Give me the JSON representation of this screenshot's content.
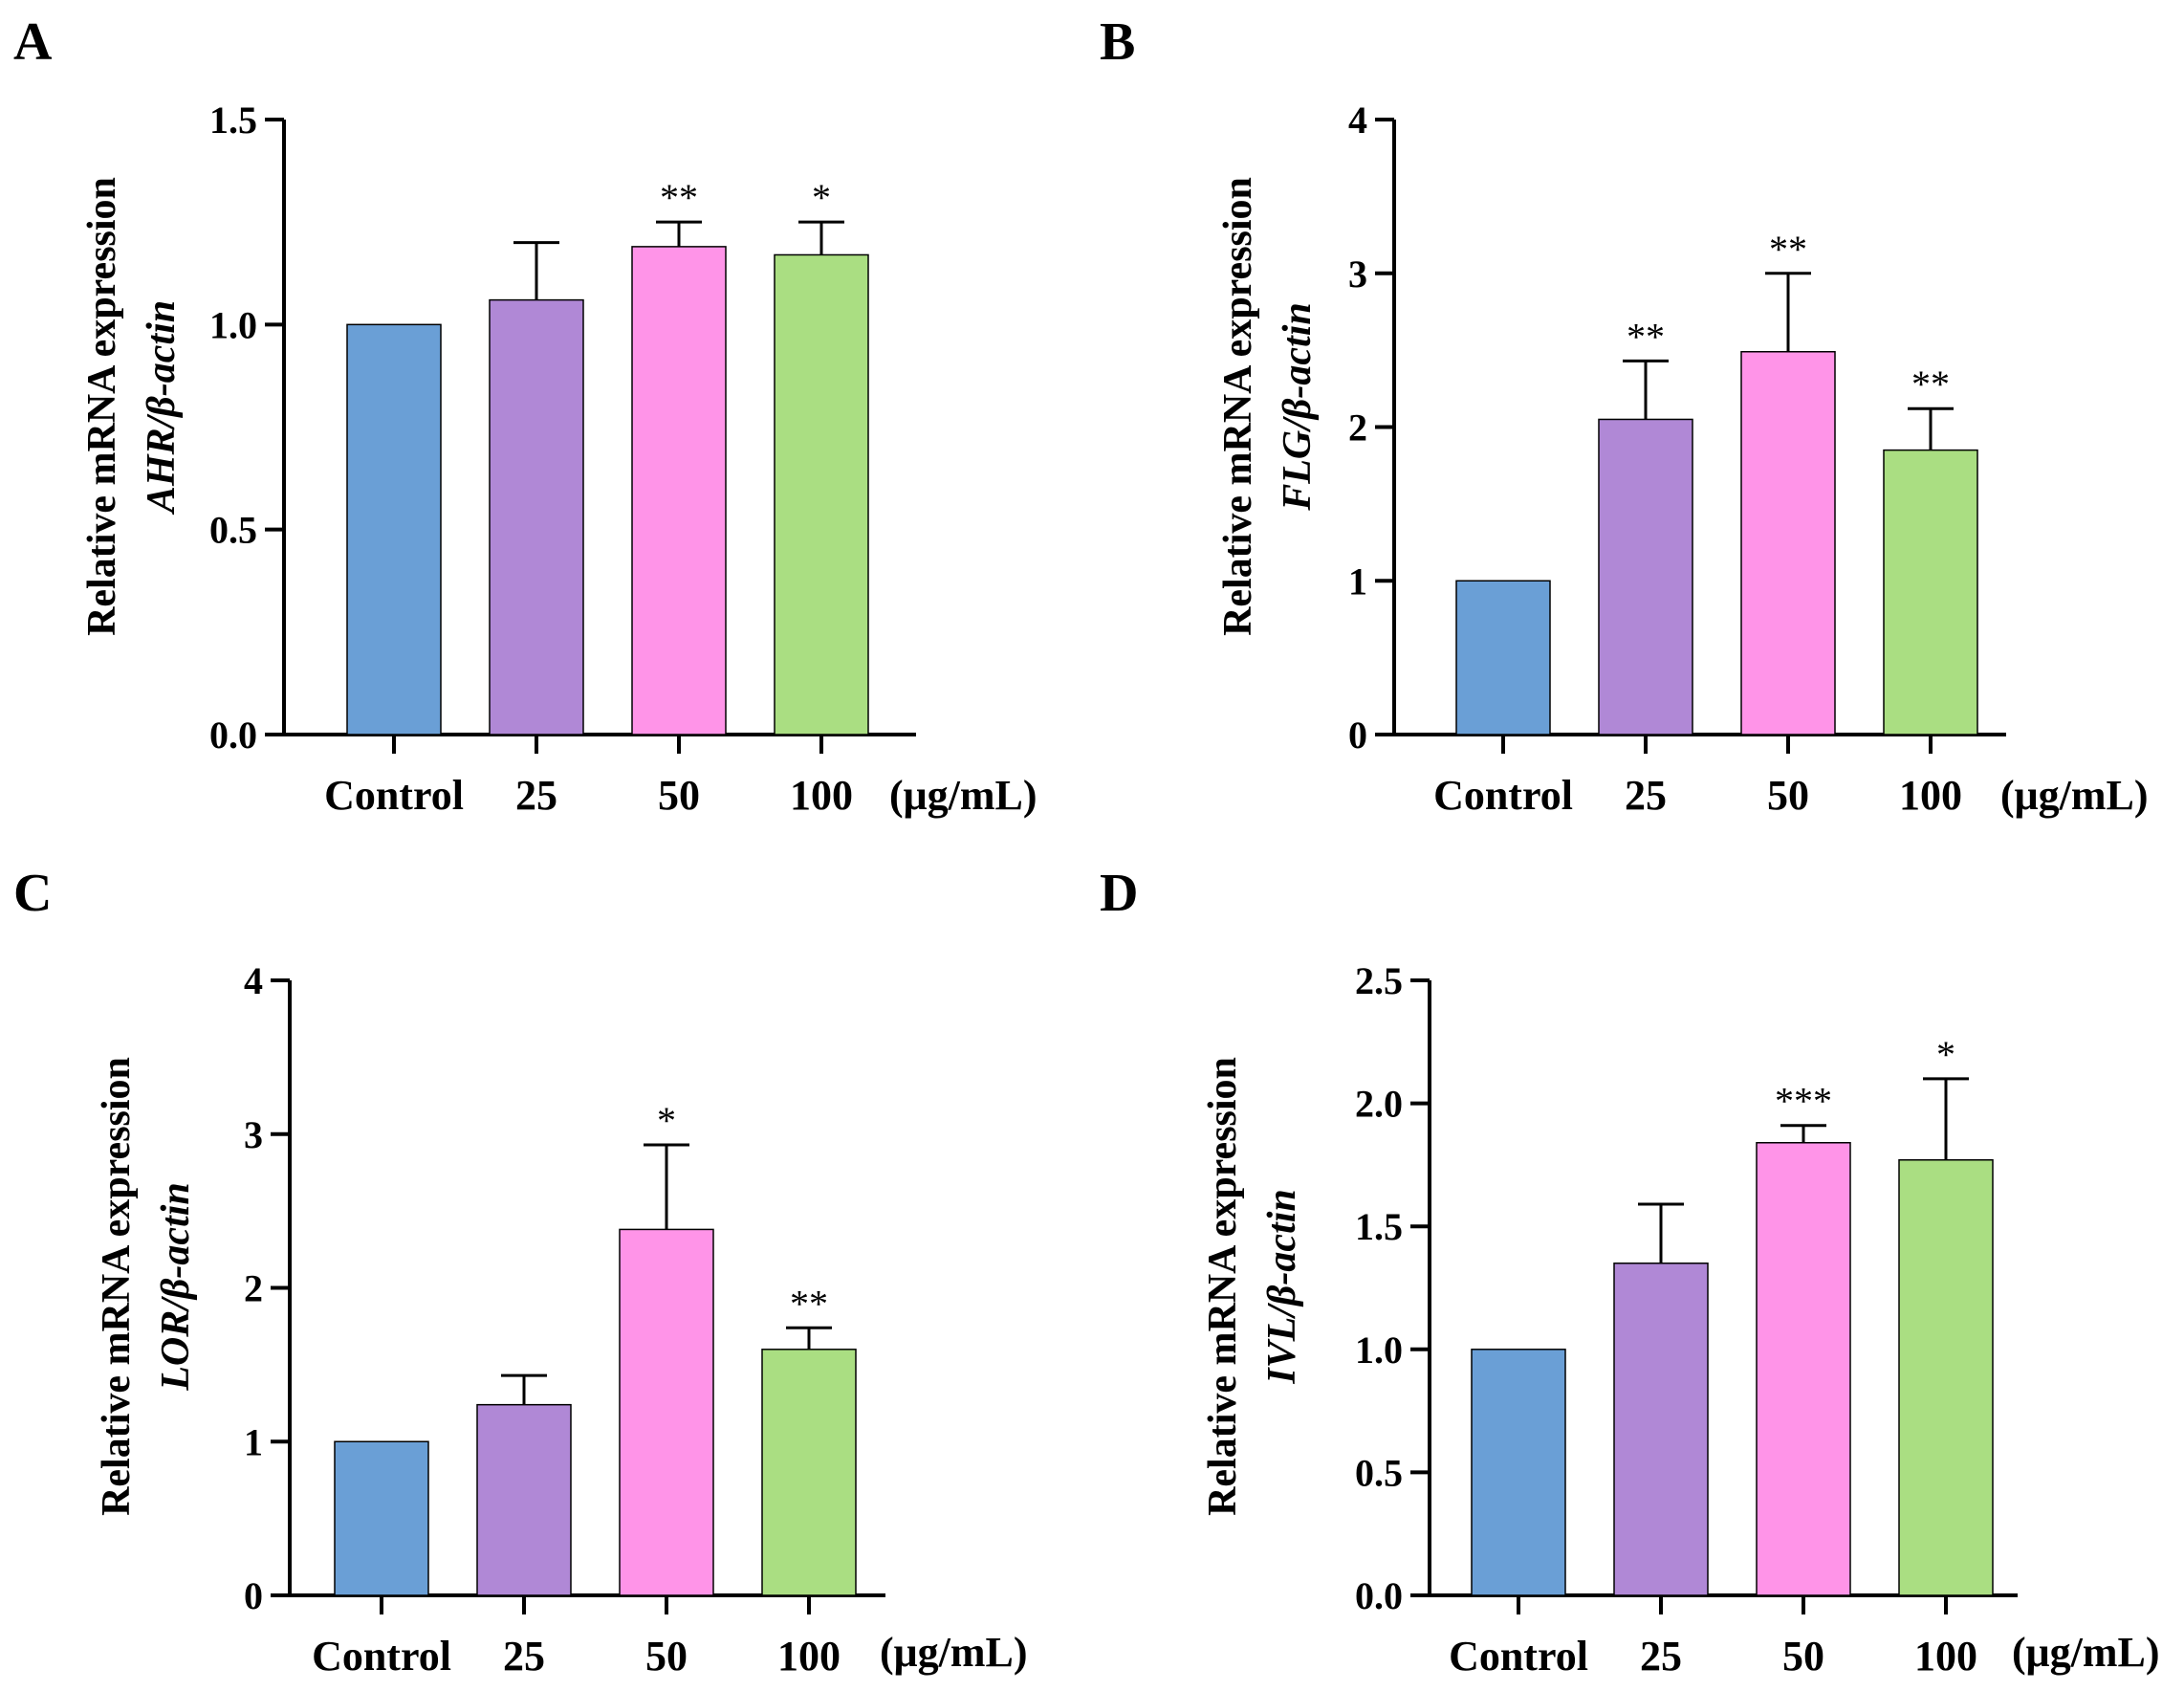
{
  "figure": {
    "unit": "(μg/mL)",
    "categories": [
      "Control",
      "25",
      "50",
      "100"
    ],
    "colors": {
      "Control": "#6a9fd6",
      "25": "#b088d6",
      "50": "#ff94e8",
      "100": "#aade82",
      "stroke": "#000000"
    }
  },
  "chart_data": [
    {
      "type": "bar",
      "panel": "A",
      "ylabel_line1": "Relative mRNA expression",
      "ylabel_line2": "AHR/β-actin",
      "categories": [
        "Control",
        "25",
        "50",
        "100"
      ],
      "values": [
        1.0,
        1.06,
        1.19,
        1.17
      ],
      "error": [
        0,
        0.14,
        0.06,
        0.08
      ],
      "significance": [
        "",
        "",
        "**",
        "*"
      ],
      "ylim": [
        0,
        1.5
      ],
      "yticks": [
        0,
        0.5,
        1.0,
        1.5
      ],
      "yticklabels": [
        "0.0",
        "0.5",
        "1.0",
        "1.5"
      ]
    },
    {
      "type": "bar",
      "panel": "B",
      "ylabel_line1": "Relative mRNA expression",
      "ylabel_line2": "FLG/β-actin",
      "categories": [
        "Control",
        "25",
        "50",
        "100"
      ],
      "values": [
        1.0,
        2.05,
        2.49,
        1.85
      ],
      "error": [
        0,
        0.38,
        0.51,
        0.27
      ],
      "significance": [
        "",
        "**",
        "**",
        "**"
      ],
      "ylim": [
        0,
        4
      ],
      "yticks": [
        0,
        1,
        2,
        3,
        4
      ],
      "yticklabels": [
        "0",
        "1",
        "2",
        "3",
        "4"
      ]
    },
    {
      "type": "bar",
      "panel": "C",
      "ylabel_line1": "Relative mRNA expression",
      "ylabel_line2": "LOR/β-actin",
      "categories": [
        "Control",
        "25",
        "50",
        "100"
      ],
      "values": [
        1.0,
        1.24,
        2.38,
        1.6
      ],
      "error": [
        0,
        0.19,
        0.55,
        0.14
      ],
      "significance": [
        "",
        "",
        "*",
        "**"
      ],
      "ylim": [
        0,
        4
      ],
      "yticks": [
        0,
        1,
        2,
        3,
        4
      ],
      "yticklabels": [
        "0",
        "1",
        "2",
        "3",
        "4"
      ]
    },
    {
      "type": "bar",
      "panel": "D",
      "ylabel_line1": "Relative mRNA expression",
      "ylabel_line2": "IVL/β-actin",
      "categories": [
        "Control",
        "25",
        "50",
        "100"
      ],
      "values": [
        1.0,
        1.35,
        1.84,
        1.77
      ],
      "error": [
        0,
        0.24,
        0.07,
        0.33
      ],
      "significance": [
        "",
        "",
        "***",
        "*"
      ],
      "ylim": [
        0,
        2.5
      ],
      "yticks": [
        0,
        0.5,
        1.0,
        1.5,
        2.0,
        2.5
      ],
      "yticklabels": [
        "0.0",
        "0.5",
        "1.0",
        "1.5",
        "2.0",
        "2.5"
      ]
    }
  ]
}
